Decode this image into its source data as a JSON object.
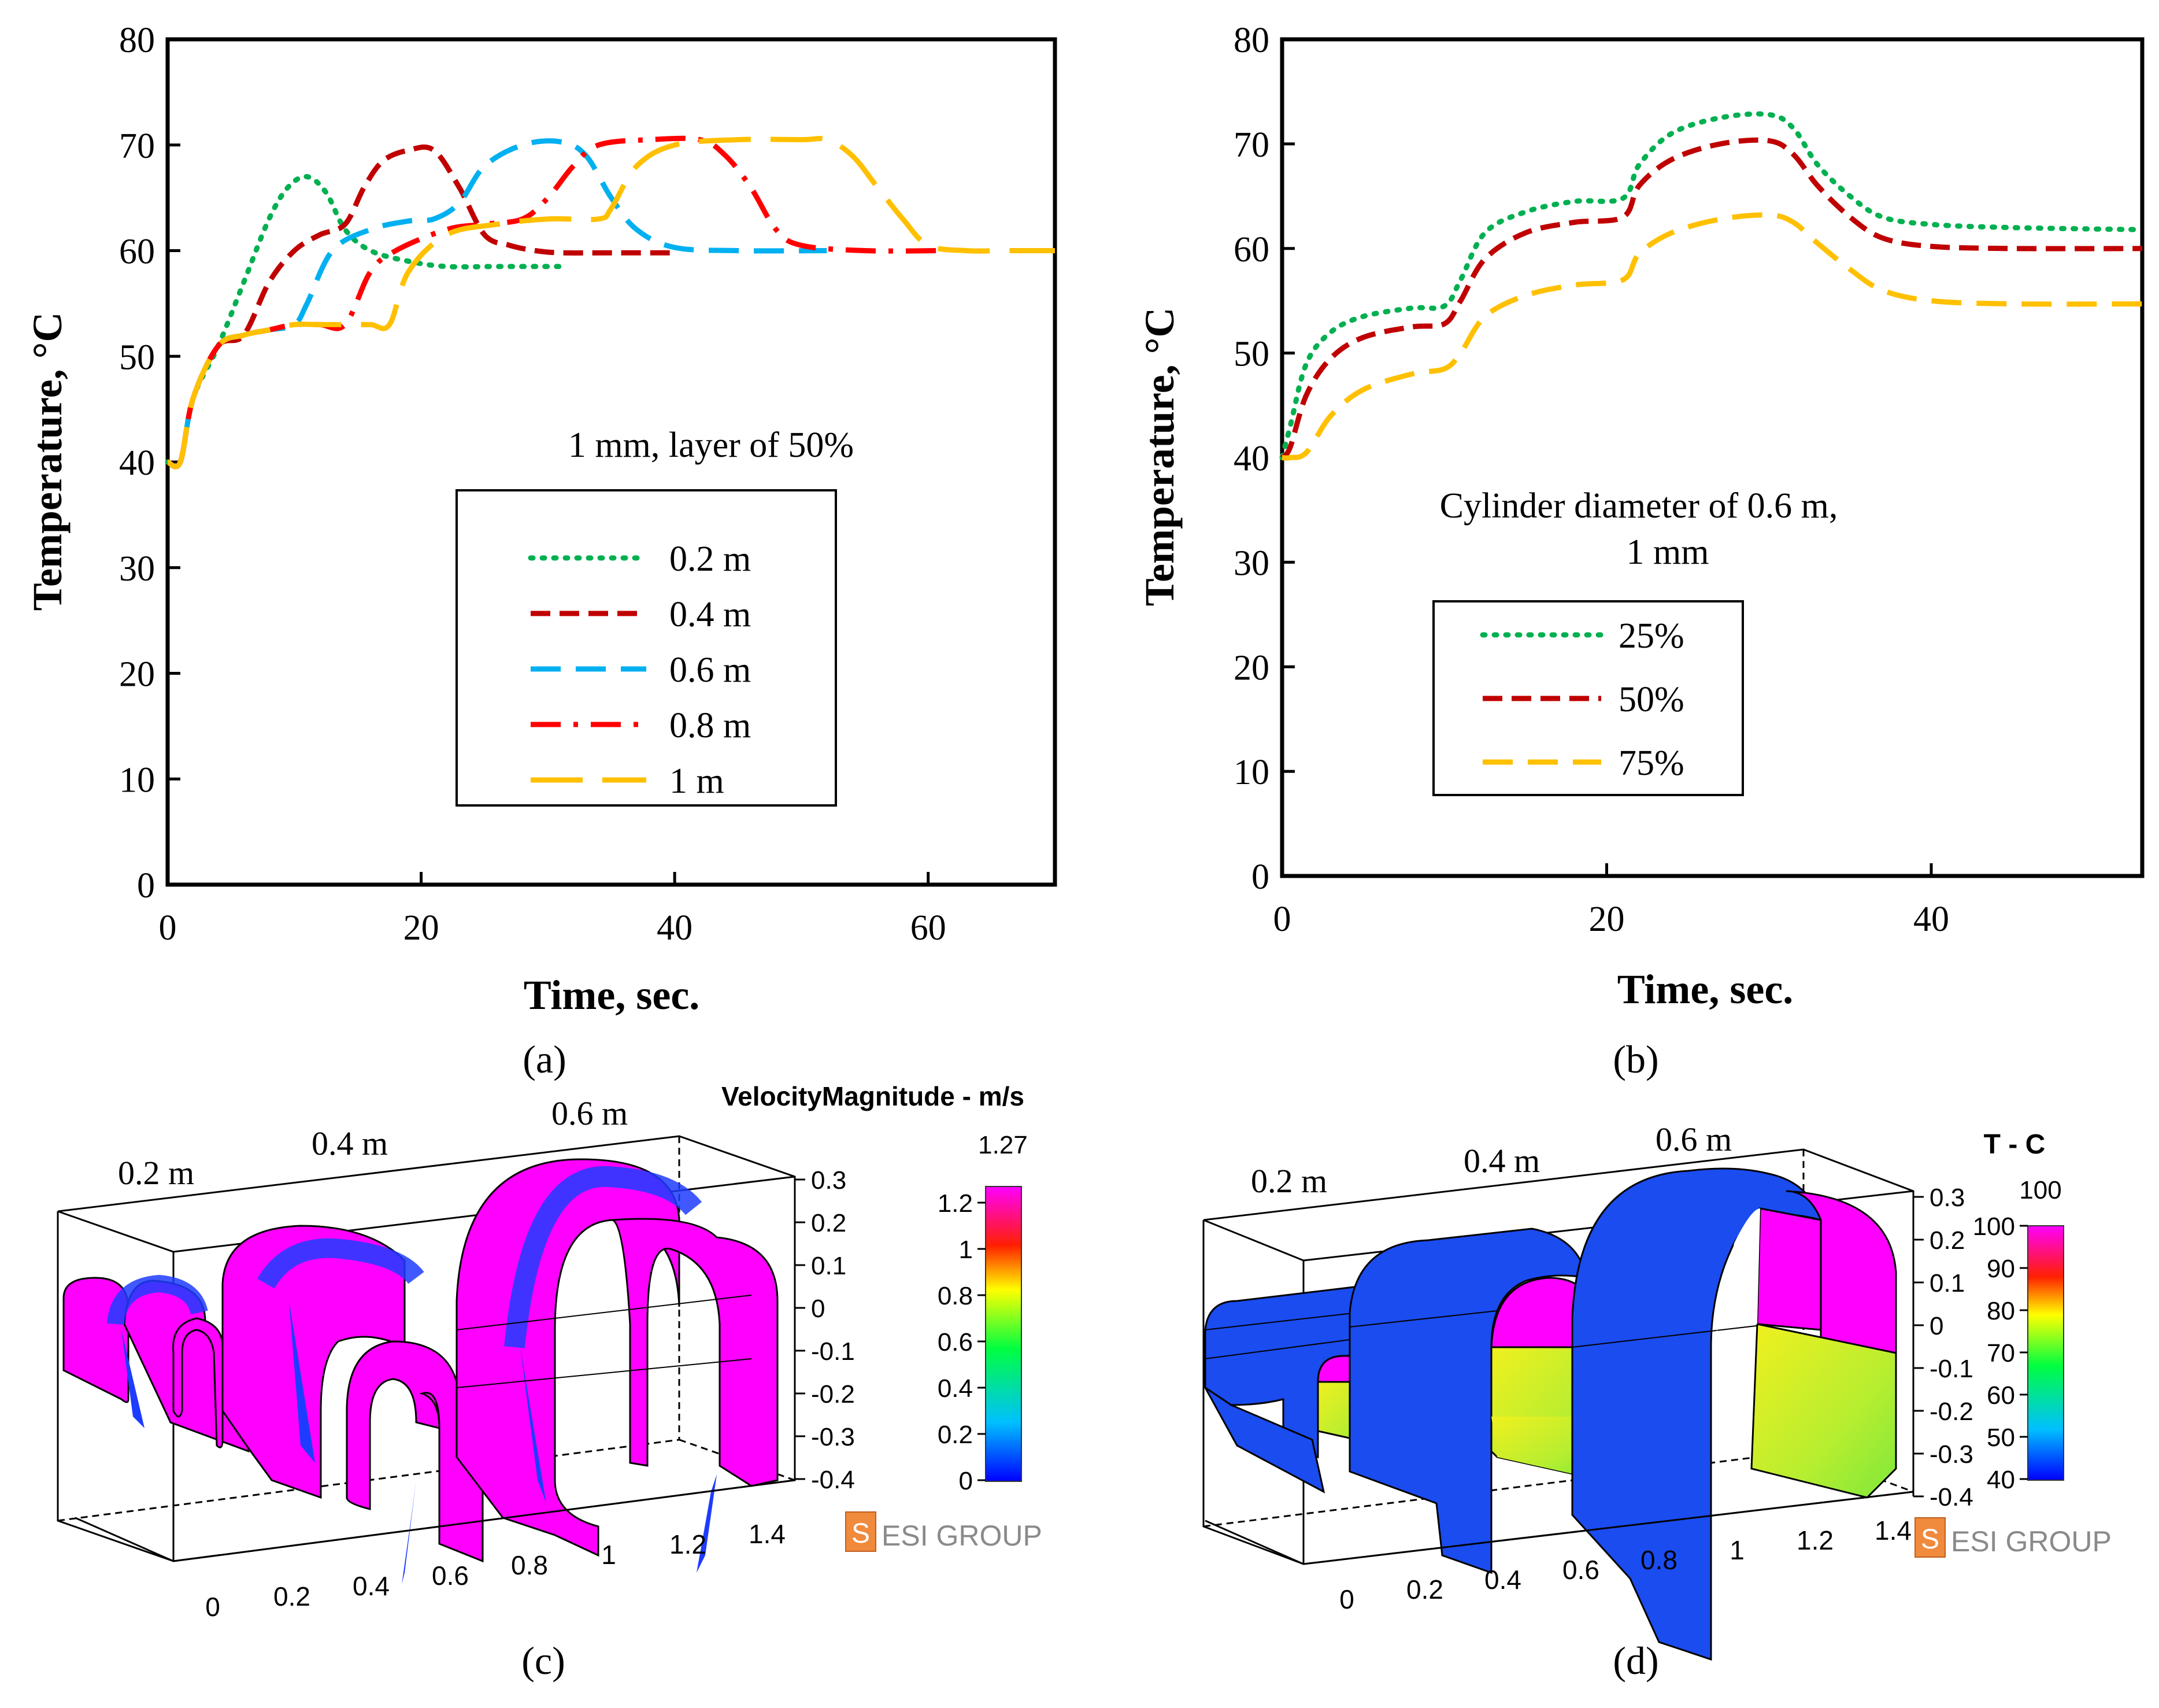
{
  "chart_data": [
    {
      "panel": "(a)",
      "type": "line",
      "xlabel": "Time, sec.",
      "ylabel": "Temperature, °C",
      "xlim": [
        0,
        70
      ],
      "ylim": [
        0,
        80
      ],
      "xticks": [
        0,
        20,
        40,
        60
      ],
      "yticks": [
        0,
        10,
        20,
        30,
        40,
        50,
        60,
        70,
        80
      ],
      "annotation": "1 mm, layer of 50%",
      "legend_position": "center",
      "series": [
        {
          "name": "0.2 m",
          "color": "#00b050",
          "dash": "dotted",
          "x": [
            0,
            1,
            2,
            4,
            6,
            8,
            9.5,
            11,
            12.5,
            14,
            16,
            19,
            22,
            26,
            31
          ],
          "y": [
            40,
            40,
            46,
            51,
            57,
            63,
            66,
            67,
            65.5,
            62,
            60,
            59,
            58.5,
            58.5,
            58.5
          ]
        },
        {
          "name": "0.4 m",
          "color": "#c00000",
          "dash": "short-dash",
          "x": [
            0,
            1,
            2,
            4,
            6,
            8,
            10,
            12,
            14,
            15.5,
            17,
            19,
            21,
            23,
            25,
            27,
            29,
            31,
            35,
            40
          ],
          "y": [
            40,
            40,
            46,
            51,
            52,
            57,
            60,
            61.5,
            62.5,
            66,
            68.5,
            69.5,
            69.5,
            66,
            61.5,
            60.5,
            60,
            59.8,
            59.8,
            59.8
          ]
        },
        {
          "name": "0.6 m",
          "color": "#00b0f0",
          "dash": "dash",
          "x": [
            0,
            1,
            2,
            4,
            6,
            8,
            10,
            11,
            13,
            16,
            19,
            21,
            23,
            25,
            28,
            31,
            33,
            35,
            37,
            40,
            45,
            52
          ],
          "y": [
            40,
            40,
            46,
            51,
            52,
            52.5,
            53,
            55,
            60,
            62,
            62.8,
            63,
            64.5,
            68,
            70,
            70.3,
            69,
            65,
            62,
            60.3,
            60,
            60
          ]
        },
        {
          "name": "0.8 m",
          "color": "#ff0000",
          "dash": "dash-dot",
          "x": [
            0,
            1,
            2,
            4,
            6,
            8,
            10,
            12,
            14,
            16,
            18,
            22,
            25,
            28,
            30,
            32,
            34,
            38,
            42,
            44,
            46,
            48,
            50,
            55,
            61
          ],
          "y": [
            40,
            40,
            46,
            51,
            52,
            52.5,
            53,
            53,
            53,
            58,
            60,
            62,
            62.5,
            63,
            65,
            68,
            70,
            70.5,
            70.5,
            69,
            66,
            62,
            60.5,
            60,
            60
          ]
        },
        {
          "name": "1 m",
          "color": "#ffc000",
          "dash": "long-dash",
          "x": [
            0,
            1,
            2,
            4,
            6,
            8,
            10,
            12,
            14,
            16,
            17.5,
            19,
            22,
            26,
            30,
            34,
            35,
            37,
            40,
            45,
            50,
            52,
            54,
            56,
            58,
            60,
            63,
            66,
            70
          ],
          "y": [
            40,
            40,
            46,
            51,
            52,
            52.5,
            53,
            53,
            53,
            53,
            53,
            58,
            61.5,
            62.5,
            63,
            63,
            64,
            68,
            70,
            70.5,
            70.5,
            70.5,
            69,
            66,
            63,
            60.5,
            60,
            60,
            60
          ]
        }
      ]
    },
    {
      "panel": "(b)",
      "type": "line",
      "xlabel": "Time, sec.",
      "ylabel": "Temperature, °C",
      "xlim": [
        0,
        53
      ],
      "ylim": [
        0,
        80
      ],
      "xticks": [
        0,
        20,
        40
      ],
      "yticks": [
        0,
        10,
        20,
        30,
        40,
        50,
        60,
        70,
        80
      ],
      "annotation": [
        "Cylinder diameter of 0.6 m,",
        "1 mm"
      ],
      "legend_position": "lower-left",
      "series": [
        {
          "name": "25%",
          "color": "#00b050",
          "dash": "dotted",
          "x": [
            0,
            0.5,
            1.5,
            3,
            5,
            8,
            10,
            11,
            12.5,
            15,
            18,
            21,
            22,
            24,
            27,
            30,
            31.5,
            33,
            35,
            37,
            40,
            45,
            53
          ],
          "y": [
            40,
            43,
            49,
            52,
            53.5,
            54.3,
            54.5,
            57,
            61.5,
            63.5,
            64.5,
            64.8,
            68,
            71,
            72.5,
            72.8,
            71.5,
            68,
            65,
            63,
            62.3,
            62,
            61.8
          ]
        },
        {
          "name": "50%",
          "color": "#c00000",
          "dash": "short-dash",
          "x": [
            0,
            0.5,
            1.5,
            3,
            5,
            8,
            10,
            11,
            12.5,
            15,
            18,
            21,
            22,
            24,
            27,
            30,
            31.5,
            33,
            35,
            37,
            40,
            45,
            53
          ],
          "y": [
            40,
            41,
            46,
            49.5,
            51.5,
            52.5,
            52.8,
            55,
            59,
            61.5,
            62.5,
            63,
            66,
            68.5,
            70,
            70.3,
            69,
            66,
            63,
            61,
            60.2,
            60,
            60
          ]
        },
        {
          "name": "75%",
          "color": "#ffc000",
          "dash": "dash",
          "x": [
            0,
            0.5,
            1.5,
            3,
            5,
            8,
            10,
            11,
            12.5,
            15,
            18,
            21,
            22,
            24,
            27,
            30,
            31.5,
            33,
            35,
            37,
            40,
            45,
            53
          ],
          "y": [
            40,
            40,
            40.5,
            44,
            46.5,
            48,
            48.5,
            50,
            53.5,
            55.5,
            56.5,
            57,
            59.5,
            61.5,
            62.8,
            63.2,
            62.5,
            60.5,
            58,
            56,
            55,
            54.7,
            54.7
          ]
        }
      ]
    }
  ],
  "panel_c": {
    "label": "(c)",
    "title": "VelocityMagnitude - m/s",
    "colorbar_max_label": "1.27",
    "colorbar_ticks": [
      "1.2",
      "1",
      "0.8",
      "0.6",
      "0.4",
      "0.2",
      "0"
    ],
    "cylinder_labels": [
      "0.2 m",
      "0.4 m",
      "0.6 m"
    ],
    "z_ticks": [
      "0.3",
      "0.2",
      "0.1",
      "0",
      "-0.1",
      "-0.2",
      "-0.3",
      "-0.4"
    ],
    "x_ticks": [
      "0",
      "0.2",
      "0.4",
      "0.6",
      "0.8",
      "1",
      "1.2",
      "1.4"
    ],
    "logo_text": "ESI GROUP"
  },
  "panel_d": {
    "label": "(d)",
    "title": "T - C",
    "colorbar_max_label": "100",
    "colorbar_ticks": [
      "100",
      "90",
      "80",
      "70",
      "60",
      "50",
      "40"
    ],
    "cylinder_labels": [
      "0.2 m",
      "0.4 m",
      "0.6 m"
    ],
    "z_ticks": [
      "0.3",
      "0.2",
      "0.1",
      "0",
      "-0.1",
      "-0.2",
      "-0.3",
      "-0.4"
    ],
    "x_ticks": [
      "0",
      "0.2",
      "0.4",
      "0.6",
      "0.8",
      "1",
      "1.2",
      "1.4"
    ],
    "logo_text": "ESI GROUP"
  },
  "colors": {
    "magenta": "#ff00ff",
    "blue": "#0a3cf0",
    "yellow_green": "#cdf22a",
    "logo_orange": "#f08a3c",
    "logo_gray": "#8a8a8a"
  }
}
